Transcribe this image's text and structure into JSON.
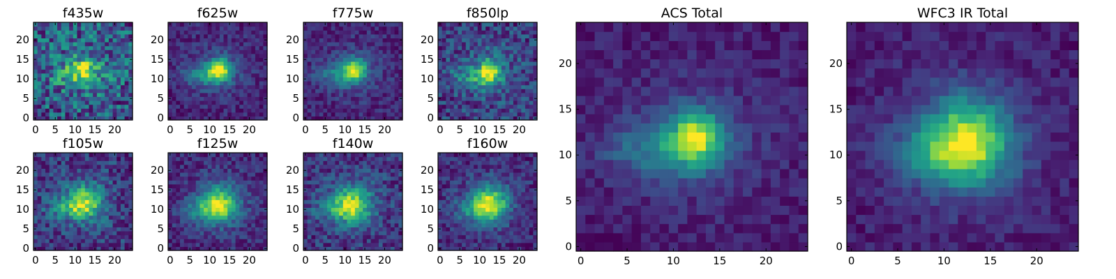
{
  "chart_data": {
    "type": "heatmap",
    "colormap": "viridis",
    "grid": false,
    "panels": [
      {
        "id": "f435w",
        "title": "f435w",
        "size": "small",
        "xticks": [
          0,
          5,
          10,
          15,
          20
        ],
        "yticks": [
          0,
          5,
          10,
          15,
          20
        ],
        "xlim": [
          -0.5,
          24.5
        ],
        "ylim": [
          -0.5,
          24.5
        ],
        "center": [
          12.5,
          12.5
        ],
        "sigma": [
          2.3,
          2.0
        ],
        "peak": 0.42,
        "ext": 0.18,
        "noise": 0.55,
        "bg": 0.42,
        "seed": 11
      },
      {
        "id": "f625w",
        "title": "f625w",
        "size": "small",
        "xticks": [
          0,
          5,
          10,
          15,
          20
        ],
        "yticks": [
          0,
          5,
          10,
          15,
          20
        ],
        "xlim": [
          -0.5,
          24.5
        ],
        "ylim": [
          -0.5,
          24.5
        ],
        "center": [
          12.5,
          12.5
        ],
        "sigma": [
          2.0,
          2.0
        ],
        "peak": 0.9,
        "ext": 0.4,
        "noise": 0.28,
        "bg": 0.22,
        "seed": 23
      },
      {
        "id": "f775w",
        "title": "f775w",
        "size": "small",
        "xticks": [
          0,
          5,
          10,
          15,
          20
        ],
        "yticks": [
          0,
          5,
          10,
          15,
          20
        ],
        "xlim": [
          -0.5,
          24.5
        ],
        "ylim": [
          -0.5,
          24.5
        ],
        "center": [
          12.5,
          12.5
        ],
        "sigma": [
          2.0,
          2.0
        ],
        "peak": 0.85,
        "ext": 0.4,
        "noise": 0.3,
        "bg": 0.24,
        "seed": 37
      },
      {
        "id": "f850lp",
        "title": "f850lp",
        "size": "small",
        "xticks": [
          0,
          5,
          10,
          15,
          20
        ],
        "yticks": [
          0,
          5,
          10,
          15,
          20
        ],
        "xlim": [
          -0.5,
          24.5
        ],
        "ylim": [
          -0.5,
          24.5
        ],
        "center": [
          12.5,
          12.0
        ],
        "sigma": [
          2.0,
          2.3
        ],
        "peak": 0.7,
        "ext": 0.3,
        "noise": 0.45,
        "bg": 0.34,
        "seed": 41
      },
      {
        "id": "f105w",
        "title": "f105w",
        "size": "small",
        "xticks": [
          0,
          5,
          10,
          15,
          20
        ],
        "yticks": [
          0,
          5,
          10,
          15,
          20
        ],
        "xlim": [
          -0.5,
          24.5
        ],
        "ylim": [
          -0.5,
          24.5
        ],
        "center": [
          12.5,
          12.0
        ],
        "sigma": [
          3.0,
          3.0
        ],
        "peak": 0.6,
        "ext": 0.35,
        "noise": 0.42,
        "bg": 0.3,
        "seed": 53
      },
      {
        "id": "f125w",
        "title": "f125w",
        "size": "small",
        "xticks": [
          0,
          5,
          10,
          15,
          20
        ],
        "yticks": [
          0,
          5,
          10,
          15,
          20
        ],
        "xlim": [
          -0.5,
          24.5
        ],
        "ylim": [
          -0.5,
          24.5
        ],
        "center": [
          12.5,
          11.5
        ],
        "sigma": [
          3.2,
          3.2
        ],
        "peak": 0.75,
        "ext": 0.3,
        "noise": 0.3,
        "bg": 0.2,
        "seed": 67
      },
      {
        "id": "f140w",
        "title": "f140w",
        "size": "small",
        "xticks": [
          0,
          5,
          10,
          15,
          20
        ],
        "yticks": [
          0,
          5,
          10,
          15,
          20
        ],
        "xlim": [
          -0.5,
          24.5
        ],
        "ylim": [
          -0.5,
          24.5
        ],
        "center": [
          12.0,
          11.5
        ],
        "sigma": [
          3.2,
          3.2
        ],
        "peak": 0.7,
        "ext": 0.35,
        "noise": 0.4,
        "bg": 0.32,
        "seed": 71
      },
      {
        "id": "f160w",
        "title": "f160w",
        "size": "small",
        "xticks": [
          0,
          5,
          10,
          15,
          20
        ],
        "yticks": [
          0,
          5,
          10,
          15,
          20
        ],
        "xlim": [
          -0.5,
          24.5
        ],
        "ylim": [
          -0.5,
          24.5
        ],
        "center": [
          12.5,
          11.5
        ],
        "sigma": [
          3.0,
          3.0
        ],
        "peak": 0.8,
        "ext": 0.25,
        "noise": 0.3,
        "bg": 0.2,
        "seed": 83
      },
      {
        "id": "acs_total",
        "title": "ACS Total",
        "size": "large",
        "xticks": [
          0,
          5,
          10,
          15,
          20
        ],
        "yticks": [
          0,
          5,
          10,
          15,
          20
        ],
        "xlim": [
          -0.5,
          24.5
        ],
        "ylim": [
          -0.5,
          24.5
        ],
        "center": [
          12.5,
          12.0
        ],
        "sigma": [
          1.9,
          2.0
        ],
        "peak": 0.95,
        "ext": 0.4,
        "noise": 0.22,
        "bg": 0.24,
        "seed": 97
      },
      {
        "id": "wfc3_ir_total",
        "title": "WFC3 IR Total",
        "size": "large",
        "xticks": [
          0,
          5,
          10,
          15,
          20
        ],
        "yticks": [
          0,
          5,
          10,
          15,
          20
        ],
        "xlim": [
          -0.5,
          24.5
        ],
        "ylim": [
          -0.5,
          24.5
        ],
        "center": [
          12.5,
          11.5
        ],
        "sigma": [
          3.1,
          3.1
        ],
        "peak": 0.9,
        "ext": 0.25,
        "noise": 0.2,
        "bg": 0.2,
        "seed": 101
      }
    ]
  }
}
